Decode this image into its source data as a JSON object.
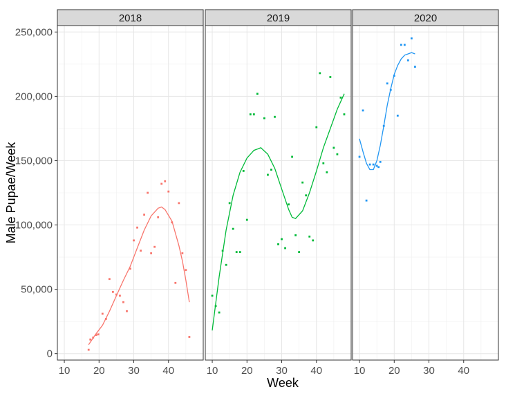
{
  "chart_data": {
    "type": "scatter",
    "xlabel": "Week",
    "ylabel": "Male Pupae/Week",
    "x_ticks": [
      "10",
      "20",
      "30",
      "40"
    ],
    "x_tick_values": [
      10,
      20,
      30,
      40
    ],
    "y_ticks": [
      "0",
      "50,000",
      "100,000",
      "150,000",
      "200,000",
      "250,000"
    ],
    "y_tick_values": [
      0,
      50000,
      100000,
      150000,
      200000,
      250000
    ],
    "xlim": [
      8,
      50
    ],
    "ylim": [
      -5000,
      255000
    ],
    "grid": true,
    "legend": "none",
    "panels": [
      {
        "label": "2018",
        "color": "#F8766D",
        "points": [
          [
            17,
            3000
          ],
          [
            17.5,
            11000
          ],
          [
            18.3,
            12500
          ],
          [
            19.2,
            14500
          ],
          [
            19.8,
            15000
          ],
          [
            21,
            31000
          ],
          [
            22,
            27000
          ],
          [
            23,
            58000
          ],
          [
            24,
            48000
          ],
          [
            25,
            46000
          ],
          [
            26,
            45000
          ],
          [
            27,
            40000
          ],
          [
            28,
            33000
          ],
          [
            29,
            66000
          ],
          [
            30,
            88000
          ],
          [
            31,
            98000
          ],
          [
            32,
            80000
          ],
          [
            33,
            108000
          ],
          [
            34,
            125000
          ],
          [
            35,
            78000
          ],
          [
            36,
            83000
          ],
          [
            37,
            106000
          ],
          [
            38,
            132000
          ],
          [
            39,
            134000
          ],
          [
            40,
            126000
          ],
          [
            41,
            102000
          ],
          [
            42,
            55000
          ],
          [
            43,
            117000
          ],
          [
            44,
            78000
          ],
          [
            45,
            65000
          ],
          [
            46,
            13000
          ]
        ],
        "curve": [
          [
            17,
            7000
          ],
          [
            19,
            15000
          ],
          [
            21,
            22000
          ],
          [
            23,
            33000
          ],
          [
            25,
            45000
          ],
          [
            27,
            57000
          ],
          [
            29,
            68000
          ],
          [
            31,
            82000
          ],
          [
            33,
            96000
          ],
          [
            35,
            107000
          ],
          [
            37,
            113000
          ],
          [
            38,
            114000
          ],
          [
            39,
            112000
          ],
          [
            41,
            103000
          ],
          [
            43,
            84000
          ],
          [
            44,
            72000
          ],
          [
            45,
            57000
          ],
          [
            46,
            40000
          ]
        ]
      },
      {
        "label": "2019",
        "color": "#00BA38",
        "points": [
          [
            10,
            45000
          ],
          [
            11,
            37000
          ],
          [
            12,
            32000
          ],
          [
            13,
            80000
          ],
          [
            14,
            69000
          ],
          [
            15,
            117000
          ],
          [
            16,
            97000
          ],
          [
            17,
            79000
          ],
          [
            18,
            79000
          ],
          [
            19,
            142000
          ],
          [
            20,
            104000
          ],
          [
            21,
            186000
          ],
          [
            22,
            186000
          ],
          [
            23,
            202000
          ],
          [
            25,
            183000
          ],
          [
            26,
            139000
          ],
          [
            27,
            143000
          ],
          [
            28,
            184000
          ],
          [
            29,
            85000
          ],
          [
            30,
            89000
          ],
          [
            31,
            82000
          ],
          [
            32,
            116000
          ],
          [
            33,
            153000
          ],
          [
            34,
            92000
          ],
          [
            35,
            79000
          ],
          [
            36,
            133000
          ],
          [
            37,
            123000
          ],
          [
            38,
            91000
          ],
          [
            39,
            88000
          ],
          [
            40,
            176000
          ],
          [
            41,
            218000
          ],
          [
            42,
            148000
          ],
          [
            43,
            141000
          ],
          [
            44,
            215000
          ],
          [
            45,
            160000
          ],
          [
            46,
            155000
          ],
          [
            47,
            199000
          ],
          [
            48,
            186000
          ]
        ],
        "curve": [
          [
            10,
            18000
          ],
          [
            12,
            60000
          ],
          [
            14,
            96000
          ],
          [
            16,
            123000
          ],
          [
            18,
            141000
          ],
          [
            20,
            152000
          ],
          [
            22,
            158000
          ],
          [
            24,
            160000
          ],
          [
            26,
            155000
          ],
          [
            28,
            144000
          ],
          [
            30,
            128000
          ],
          [
            32,
            112000
          ],
          [
            33,
            106000
          ],
          [
            34,
            105000
          ],
          [
            36,
            111000
          ],
          [
            38,
            125000
          ],
          [
            40,
            142000
          ],
          [
            42,
            160000
          ],
          [
            44,
            175000
          ],
          [
            46,
            190000
          ],
          [
            48,
            202000
          ]
        ]
      },
      {
        "label": "2020",
        "color": "#2196F3",
        "points": [
          [
            10,
            153000
          ],
          [
            11,
            189000
          ],
          [
            12,
            119000
          ],
          [
            13,
            147000
          ],
          [
            14,
            147000
          ],
          [
            15,
            146000
          ],
          [
            15.5,
            145000
          ],
          [
            16,
            149000
          ],
          [
            17,
            177000
          ],
          [
            18,
            210000
          ],
          [
            19,
            205000
          ],
          [
            20,
            216000
          ],
          [
            21,
            185000
          ],
          [
            22,
            240000
          ],
          [
            23,
            240000
          ],
          [
            24,
            228000
          ],
          [
            25,
            245000
          ],
          [
            26,
            223000
          ]
        ],
        "curve": [
          [
            10,
            167000
          ],
          [
            11,
            157000
          ],
          [
            12,
            148000
          ],
          [
            13,
            143000
          ],
          [
            14,
            143000
          ],
          [
            15,
            150000
          ],
          [
            16,
            162000
          ],
          [
            17,
            177000
          ],
          [
            18,
            193000
          ],
          [
            19,
            206000
          ],
          [
            20,
            217000
          ],
          [
            21,
            224000
          ],
          [
            22,
            229000
          ],
          [
            23,
            232000
          ],
          [
            24,
            233000
          ],
          [
            25,
            234000
          ],
          [
            26,
            233000
          ]
        ]
      }
    ]
  }
}
